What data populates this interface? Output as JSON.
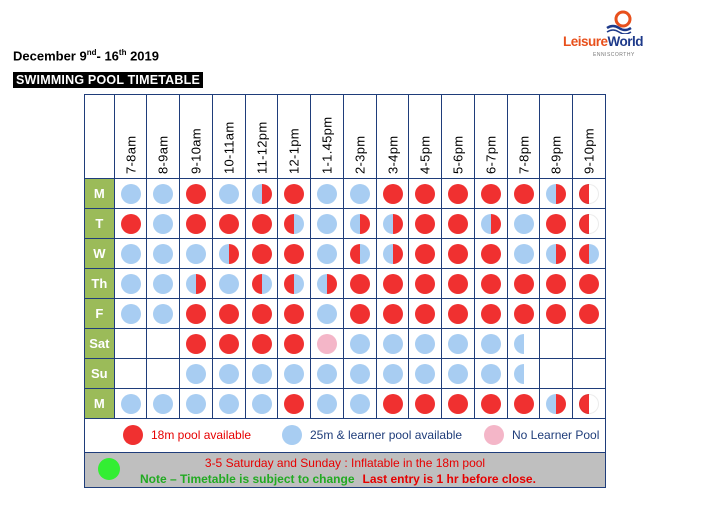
{
  "header": {
    "date_pre": "December 9",
    "date_sup1": "nd",
    "date_mid": "- 16",
    "date_sup2": "th",
    "date_post": " 2019",
    "title": "SWIMMING POOL TIMETABLE"
  },
  "logo": {
    "brand_a": "Leisure",
    "brand_b": "World",
    "sub": "ENNISCORTHY"
  },
  "colors": {
    "red": "#f03030",
    "blue": "#a8cdf2",
    "pink": "#f4b6c8",
    "green": "#33ee33",
    "day_bg": "#9bbb59"
  },
  "times": [
    "7-8am",
    "8-9am",
    "9-10am",
    "10-11am",
    "11-12pm",
    "12-1pm",
    "1-1.45pm",
    "2-3pm",
    "3-4pm",
    "4-5pm",
    "5-6pm",
    "6-7pm",
    "7-8pm",
    "8-9pm",
    "9-10pm"
  ],
  "days": [
    {
      "label": "M",
      "slots": [
        "B",
        "B",
        "R",
        "B",
        "BR",
        "R",
        "B",
        "B",
        "R",
        "R",
        "R",
        "R",
        "R",
        "BR",
        "RE"
      ]
    },
    {
      "label": "T",
      "slots": [
        "R",
        "B",
        "R",
        "R",
        "R",
        "RB",
        "B",
        "BR",
        "BR",
        "R",
        "R",
        "BR",
        "B",
        "R",
        "RE"
      ]
    },
    {
      "label": "W",
      "slots": [
        "B",
        "B",
        "B",
        "BR",
        "R",
        "R",
        "B",
        "RB",
        "BR",
        "R",
        "R",
        "R",
        "B",
        "BR",
        "RB"
      ]
    },
    {
      "label": "Th",
      "slots": [
        "B",
        "B",
        "BR",
        "B",
        "RB",
        "RB",
        "BR",
        "R",
        "R",
        "R",
        "R",
        "R",
        "R",
        "R",
        "R"
      ]
    },
    {
      "label": "F",
      "slots": [
        "B",
        "B",
        "R",
        "R",
        "R",
        "R",
        "B",
        "R",
        "R",
        "R",
        "R",
        "R",
        "R",
        "R",
        "R"
      ]
    },
    {
      "label": "Sat",
      "slots": [
        "",
        "",
        "R",
        "R",
        "R",
        "R",
        "P",
        "B",
        "B",
        "B",
        "B",
        "B",
        "BE",
        "",
        ""
      ]
    },
    {
      "label": "Su",
      "slots": [
        "",
        "",
        "B",
        "B",
        "B",
        "B",
        "B",
        "B",
        "B",
        "B",
        "B",
        "B",
        "BE",
        "",
        ""
      ]
    },
    {
      "label": "M",
      "slots": [
        "B",
        "B",
        "B",
        "B",
        "B",
        "R",
        "B",
        "B",
        "R",
        "R",
        "R",
        "R",
        "R",
        "BR",
        "RE"
      ]
    }
  ],
  "legend": {
    "red_label": "18m pool available",
    "blue_label": "25m & learner pool available",
    "pink_label": "No Learner Pool"
  },
  "notes": {
    "line1": "3-5 Saturday and Sunday : Inflatable in the 18m pool",
    "line2_green": "Note – Timetable is subject to change",
    "line2_red": "Last entry is 1 hr before close."
  }
}
